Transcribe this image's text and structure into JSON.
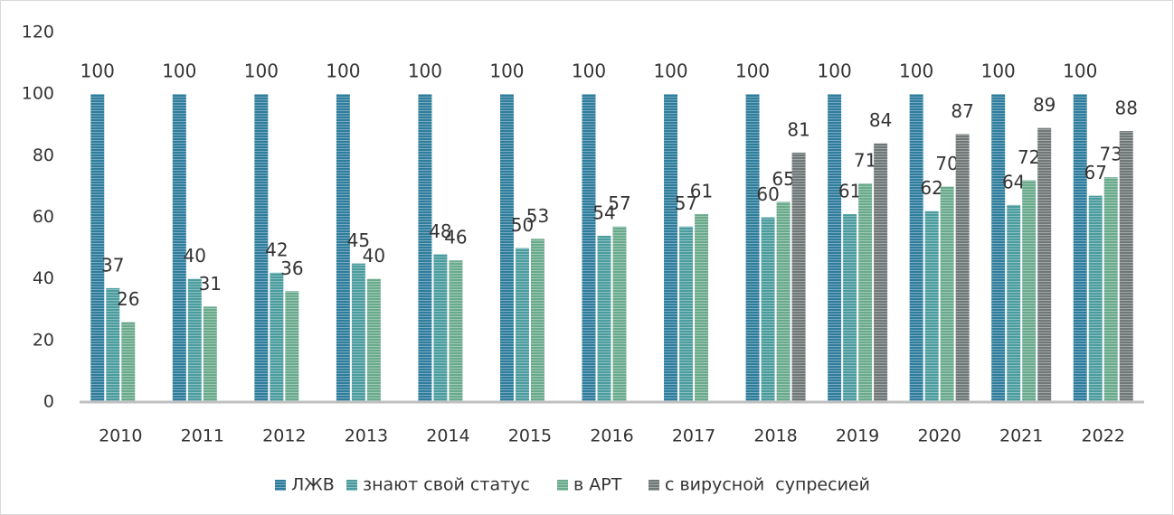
{
  "chart_data": {
    "type": "bar",
    "categories": [
      "2010",
      "2011",
      "2012",
      "2013",
      "2014",
      "2015",
      "2016",
      "2017",
      "2018",
      "2019",
      "2020",
      "2021",
      "2022"
    ],
    "series": [
      {
        "name": "ЛЖВ",
        "color": "#2f7d9c",
        "values": [
          100,
          100,
          100,
          100,
          100,
          100,
          100,
          100,
          100,
          100,
          100,
          100,
          100
        ]
      },
      {
        "name": "знают свой статус",
        "color": "#4b9c9e",
        "values": [
          37,
          40,
          42,
          45,
          48,
          50,
          54,
          57,
          60,
          61,
          62,
          64,
          67
        ]
      },
      {
        "name": "в АРТ",
        "color": "#6aaa8c",
        "values": [
          26,
          31,
          36,
          40,
          46,
          53,
          57,
          61,
          65,
          71,
          70,
          72,
          73
        ]
      },
      {
        "name": "с вирусной  супресией",
        "color": "#6f7777",
        "values": [
          null,
          null,
          null,
          null,
          null,
          null,
          null,
          null,
          81,
          84,
          87,
          89,
          88
        ]
      }
    ],
    "ylim": [
      0,
      120
    ],
    "yticks": [
      0,
      20,
      40,
      60,
      80,
      100,
      120
    ],
    "grid": false
  }
}
